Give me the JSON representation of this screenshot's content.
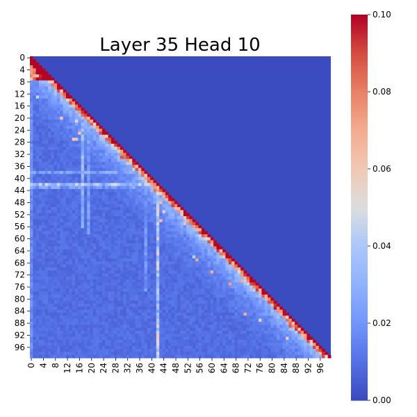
{
  "chart_data": {
    "type": "heatmap",
    "title": "Layer 35 Head 10",
    "xlabel": "",
    "ylabel": "",
    "n": 100,
    "x_tick_labels": [
      "0",
      "4",
      "8",
      "12",
      "16",
      "20",
      "24",
      "28",
      "32",
      "36",
      "40",
      "44",
      "48",
      "52",
      "56",
      "60",
      "64",
      "68",
      "72",
      "76",
      "80",
      "84",
      "88",
      "92",
      "96"
    ],
    "y_tick_labels": [
      "0",
      "4",
      "8",
      "12",
      "16",
      "20",
      "24",
      "28",
      "32",
      "36",
      "40",
      "44",
      "48",
      "52",
      "56",
      "60",
      "64",
      "68",
      "72",
      "76",
      "80",
      "84",
      "88",
      "92",
      "96"
    ],
    "colorbar": {
      "min": 0.0,
      "max": 0.1,
      "colormap": "coolwarm",
      "tick_labels": [
        "0.00",
        "0.02",
        "0.04",
        "0.06",
        "0.08",
        "0.10"
      ]
    },
    "structure": "causal lower-triangular attention; diagonal saturated at ~0.10, upper triangle 0",
    "highlights": {
      "hot_columns": [
        {
          "col": 0,
          "value": 0.016
        },
        {
          "col": 17,
          "value": 0.035
        },
        {
          "col": 19,
          "value": 0.024
        },
        {
          "col": 38,
          "value": 0.022
        },
        {
          "col": 42,
          "value": 0.03
        }
      ],
      "hot_rows": [
        {
          "row": 38,
          "value": 0.034
        },
        {
          "row": 42,
          "value": 0.05
        },
        {
          "row": 43,
          "value": 0.03
        }
      ]
    },
    "colors": {
      "low": "#3b4cc0",
      "mid": "#dddddd",
      "high": "#b40426"
    }
  }
}
